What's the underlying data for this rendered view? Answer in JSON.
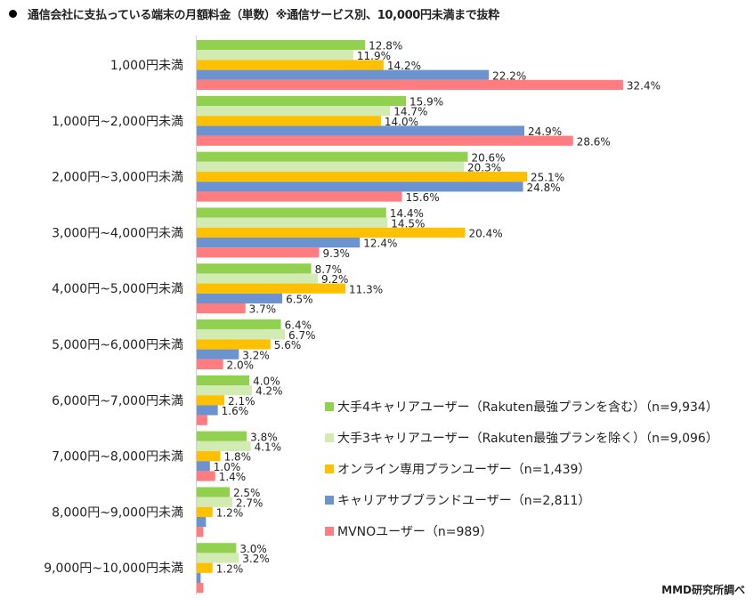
{
  "title": "通信会社に支払っている端末の月額料金（単数）※通信サービス別、10,000円未満まで抜粋",
  "credit": "MMD研究所調べ",
  "chart_data": {
    "type": "bar",
    "orientation": "horizontal",
    "title": "通信会社に支払っている端末の月額料金（単数）※通信サービス別、10,000円未満まで抜粋",
    "xlabel": "",
    "ylabel": "",
    "xlim": [
      0,
      35
    ],
    "grid": false,
    "legend_position": "bottom-right",
    "categories": [
      "1,000円未満",
      "1,000円~2,000円未満",
      "2,000円~3,000円未満",
      "3,000円~4,000円未満",
      "4,000円~5,000円未満",
      "5,000円~6,000円未満",
      "6,000円~7,000円未満",
      "7,000円~8,000円未満",
      "8,000円~9,000円未満",
      "9,000円~10,000円未満"
    ],
    "series": [
      {
        "name": "大手4キャリアユーザー（Rakuten最強プランを含む）（n=9,934）",
        "color": "#92d050",
        "values": [
          12.8,
          15.9,
          20.6,
          14.4,
          8.7,
          6.4,
          4.0,
          3.8,
          2.5,
          3.0
        ],
        "labels": [
          "12.8%",
          "15.9%",
          "20.6%",
          "14.4%",
          "8.7%",
          "6.4%",
          "4.0%",
          "3.8%",
          "2.5%",
          "3.0%"
        ]
      },
      {
        "name": "大手3キャリアユーザー（Rakuten最強プランを除く）（n=9,096）",
        "color": "#d1ebb3",
        "values": [
          11.9,
          14.7,
          20.3,
          14.5,
          9.2,
          6.7,
          4.2,
          4.1,
          2.7,
          3.2
        ],
        "labels": [
          "11.9%",
          "14.7%",
          "20.3%",
          "14.5%",
          "9.2%",
          "6.7%",
          "4.2%",
          "4.1%",
          "2.7%",
          "3.2%"
        ]
      },
      {
        "name": "オンライン専用プランユーザー（n=1,439）",
        "color": "#ffc000",
        "values": [
          14.2,
          14.0,
          25.1,
          20.4,
          11.3,
          5.6,
          2.1,
          1.8,
          1.2,
          1.2
        ],
        "labels": [
          "14.2%",
          "14.0%",
          "25.1%",
          "20.4%",
          "11.3%",
          "5.6%",
          "2.1%",
          "1.8%",
          "1.2%",
          "1.2%"
        ]
      },
      {
        "name": "キャリアサブブランドユーザー（n=2,811）",
        "color": "#6a93d0",
        "values": [
          22.2,
          24.9,
          24.8,
          12.4,
          6.5,
          3.2,
          1.6,
          1.0,
          0.7,
          0.3
        ],
        "labels": [
          "22.2%",
          "24.9%",
          "24.8%",
          "12.4%",
          "6.5%",
          "3.2%",
          "1.6%",
          "1.0%",
          "",
          ""
        ]
      },
      {
        "name": "MVNOユーザー（n=989）",
        "color": "#ff7c80",
        "values": [
          32.4,
          28.6,
          15.6,
          9.3,
          3.7,
          2.0,
          0.8,
          1.4,
          0.5,
          0.5
        ],
        "labels": [
          "32.4%",
          "28.6%",
          "15.6%",
          "9.3%",
          "3.7%",
          "2.0%",
          "",
          "1.4%",
          "",
          ""
        ]
      }
    ]
  },
  "legend": [
    {
      "label": "大手4キャリアユーザー（Rakuten最強プランを含む）（n=9,934）",
      "color": "#92d050"
    },
    {
      "label": "大手3キャリアユーザー（Rakuten最強プランを除く）（n=9,096）",
      "color": "#d1ebb3"
    },
    {
      "label": "オンライン専用プランユーザー（n=1,439）",
      "color": "#ffc000"
    },
    {
      "label": "キャリアサブブランドユーザー（n=2,811）",
      "color": "#6a93d0"
    },
    {
      "label": "MVNOユーザー（n=989）",
      "color": "#ff7c80"
    }
  ]
}
